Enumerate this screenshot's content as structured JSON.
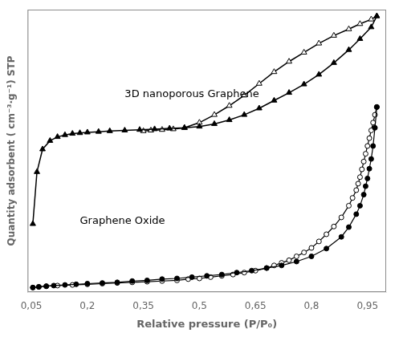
{
  "chart_data": {
    "type": "line",
    "xlabel": "Relative pressure (P/P₀)",
    "ylabel": "Quantity adsorbent ( cm⁻³·g⁻¹) STP",
    "xlim": [
      0.04,
      1.0
    ],
    "ylim": [
      -5,
      430
    ],
    "xticks": [
      {
        "value": 0.05,
        "label": "0,05"
      },
      {
        "value": 0.2,
        "label": "0,2"
      },
      {
        "value": 0.35,
        "label": "0,35"
      },
      {
        "value": 0.5,
        "label": "0,5"
      },
      {
        "value": 0.65,
        "label": "0,65"
      },
      {
        "value": 0.8,
        "label": "0,8"
      },
      {
        "value": 0.95,
        "label": "0,95"
      }
    ],
    "tick_labels": "x",
    "grid": false,
    "color": "#000000",
    "annotations": [
      {
        "text": "3D nanoporous Graphene",
        "x": 0.3,
        "y": 295
      },
      {
        "text": "Graphene Oxide",
        "x": 0.18,
        "y": 100
      }
    ],
    "series": [
      {
        "marker": "triangle",
        "color": "#000000",
        "x": [
          0.054,
          0.065,
          0.08,
          0.1,
          0.12,
          0.14,
          0.16,
          0.18,
          0.2,
          0.23,
          0.26,
          0.3,
          0.34,
          0.38,
          0.42,
          0.46,
          0.5,
          0.54,
          0.58,
          0.62,
          0.66,
          0.7,
          0.74,
          0.78,
          0.82,
          0.86,
          0.9,
          0.93,
          0.96,
          0.975
        ],
        "values": [
          100,
          180,
          215,
          228,
          234,
          237,
          239,
          240,
          241,
          242,
          243,
          244,
          245,
          246,
          247,
          248,
          250,
          254,
          260,
          268,
          278,
          290,
          302,
          315,
          330,
          348,
          368,
          385,
          403,
          420
        ]
      },
      {
        "marker": "triangle-open",
        "color": "#000000",
        "x": [
          0.975,
          0.96,
          0.93,
          0.9,
          0.86,
          0.82,
          0.78,
          0.74,
          0.7,
          0.66,
          0.62,
          0.58,
          0.54,
          0.5,
          0.46,
          0.43,
          0.4,
          0.37,
          0.35
        ],
        "values": [
          420,
          415,
          408,
          400,
          390,
          378,
          364,
          350,
          334,
          316,
          298,
          282,
          268,
          256,
          248,
          246,
          245,
          244,
          243
        ]
      },
      {
        "marker": "circle",
        "color": "#000000",
        "x": [
          0.054,
          0.07,
          0.09,
          0.11,
          0.14,
          0.17,
          0.2,
          0.24,
          0.28,
          0.32,
          0.36,
          0.4,
          0.44,
          0.48,
          0.52,
          0.56,
          0.6,
          0.64,
          0.68,
          0.72,
          0.76,
          0.8,
          0.84,
          0.88,
          0.9,
          0.92,
          0.93,
          0.94,
          0.945,
          0.95,
          0.955,
          0.96,
          0.965,
          0.97,
          0.975
        ],
        "values": [
          2,
          3,
          4,
          5,
          6,
          7,
          8,
          9,
          10,
          12,
          13,
          15,
          16,
          18,
          20,
          22,
          25,
          28,
          32,
          36,
          42,
          50,
          62,
          80,
          95,
          115,
          128,
          145,
          158,
          170,
          185,
          200,
          220,
          248,
          280
        ]
      },
      {
        "marker": "circle-open",
        "color": "#000000",
        "x": [
          0.975,
          0.97,
          0.965,
          0.96,
          0.955,
          0.95,
          0.945,
          0.94,
          0.935,
          0.93,
          0.925,
          0.92,
          0.91,
          0.9,
          0.88,
          0.86,
          0.84,
          0.82,
          0.8,
          0.78,
          0.76,
          0.74,
          0.72,
          0.7,
          0.68,
          0.65,
          0.62,
          0.59,
          0.56,
          0.53,
          0.5,
          0.47,
          0.44,
          0.4,
          0.36,
          0.32,
          0.28,
          0.24,
          0.2,
          0.16,
          0.12,
          0.09,
          0.07,
          0.054
        ],
        "values": [
          280,
          268,
          256,
          244,
          232,
          220,
          208,
          196,
          184,
          172,
          162,
          152,
          140,
          128,
          110,
          96,
          84,
          73,
          63,
          56,
          50,
          44,
          40,
          36,
          32,
          28,
          25,
          22,
          20,
          18,
          16,
          15,
          13,
          12,
          11,
          10,
          9,
          8,
          7,
          6,
          5,
          4,
          3,
          2
        ]
      }
    ]
  }
}
